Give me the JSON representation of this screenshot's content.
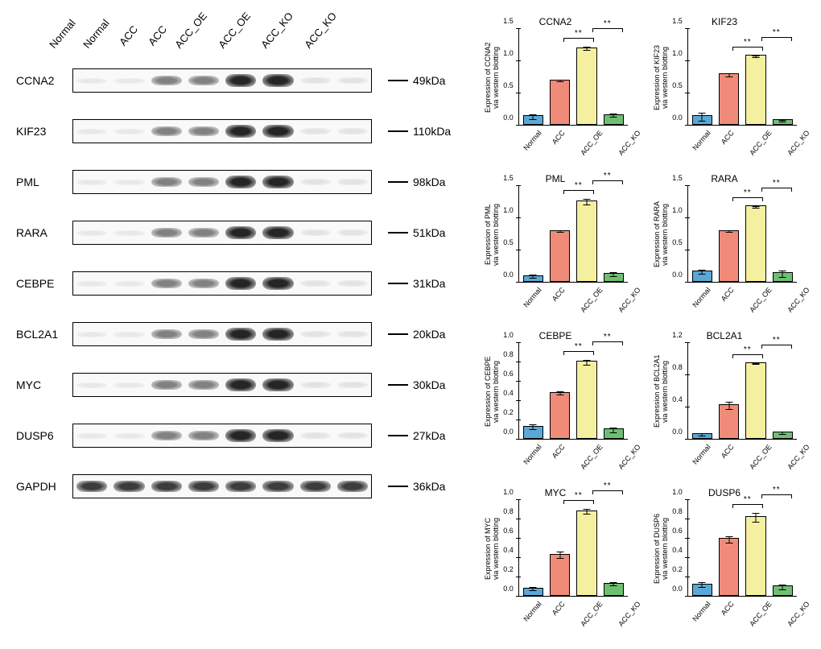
{
  "lane_headers": [
    "Normal",
    "Normal",
    "ACC",
    "ACC",
    "ACC_OE",
    "ACC_OE",
    "ACC_KO",
    "ACC_KO"
  ],
  "band_intensity_pattern": [
    0.1,
    0.1,
    0.55,
    0.55,
    0.95,
    0.95,
    0.12,
    0.12
  ],
  "blots": [
    {
      "protein": "CCNA2",
      "mw": "49kDa"
    },
    {
      "protein": "KIF23",
      "mw": "110kDa"
    },
    {
      "protein": "PML",
      "mw": "98kDa"
    },
    {
      "protein": "RARA",
      "mw": "51kDa"
    },
    {
      "protein": "CEBPE",
      "mw": "31kDa"
    },
    {
      "protein": "BCL2A1",
      "mw": "20kDa"
    },
    {
      "protein": "MYC",
      "mw": "30kDa"
    },
    {
      "protein": "DUSP6",
      "mw": "27kDa"
    },
    {
      "protein": "GAPDH",
      "mw": "36kDa",
      "uniform": true
    }
  ],
  "chart_categories": [
    "Normal",
    "ACC",
    "ACC_OE",
    "ACC_KO"
  ],
  "bar_colors": [
    "#5aa8d6",
    "#f08b7a",
    "#f5f0a0",
    "#6fbf73"
  ],
  "bar_border": "#000000",
  "axis_color": "#000000",
  "background_color": "#ffffff",
  "title_fontsize": 12,
  "label_fontsize": 9,
  "ylabel_fontsize": 9,
  "significance_marker": "**",
  "charts": [
    {
      "title": "CCNA2",
      "ylabel": "Expression of CCNA2\nvia western blotting",
      "ymax": 1.5,
      "ytick": 0.5,
      "values": [
        0.12,
        0.68,
        1.18,
        0.14
      ],
      "errors": [
        0.04,
        0.02,
        0.03,
        0.03
      ]
    },
    {
      "title": "KIF23",
      "ylabel": "Expression of KIF23\nvia western blotting",
      "ymax": 1.5,
      "ytick": 0.5,
      "values": [
        0.12,
        0.77,
        1.06,
        0.06
      ],
      "errors": [
        0.07,
        0.03,
        0.02,
        0.02
      ]
    },
    {
      "title": "PML",
      "ylabel": "Expression of PML\nvia western blotting",
      "ymax": 1.5,
      "ytick": 0.5,
      "values": [
        0.08,
        0.78,
        1.24,
        0.11
      ],
      "errors": [
        0.03,
        0.02,
        0.05,
        0.04
      ]
    },
    {
      "title": "RARA",
      "ylabel": "Expression of RARA\nvia western blotting",
      "ymax": 1.5,
      "ytick": 0.5,
      "values": [
        0.15,
        0.78,
        1.16,
        0.12
      ],
      "errors": [
        0.04,
        0.02,
        0.02,
        0.06
      ]
    },
    {
      "title": "CEBPE",
      "ylabel": "Expression of CEBPE\nvia western blotting",
      "ymax": 1.0,
      "ytick": 0.2,
      "values": [
        0.12,
        0.47,
        0.79,
        0.09
      ],
      "errors": [
        0.03,
        0.02,
        0.03,
        0.03
      ]
    },
    {
      "title": "BCL2A1",
      "ylabel": "Expression of BCL2A1\nvia western blotting",
      "ymax": 1.2,
      "ytick": 0.4,
      "values": [
        0.05,
        0.41,
        0.93,
        0.07
      ],
      "errors": [
        0.02,
        0.05,
        0.01,
        0.02
      ]
    },
    {
      "title": "MYC",
      "ylabel": "Expression of MYC\nvia western blotting",
      "ymax": 1.0,
      "ytick": 0.2,
      "values": [
        0.07,
        0.42,
        0.87,
        0.12
      ],
      "errors": [
        0.02,
        0.04,
        0.03,
        0.02
      ]
    },
    {
      "title": "DUSP6",
      "ylabel": "Expression of DUSP6\nvia western blotting",
      "ymax": 1.0,
      "ytick": 0.2,
      "values": [
        0.11,
        0.58,
        0.81,
        0.09
      ],
      "errors": [
        0.03,
        0.04,
        0.05,
        0.03
      ]
    }
  ]
}
